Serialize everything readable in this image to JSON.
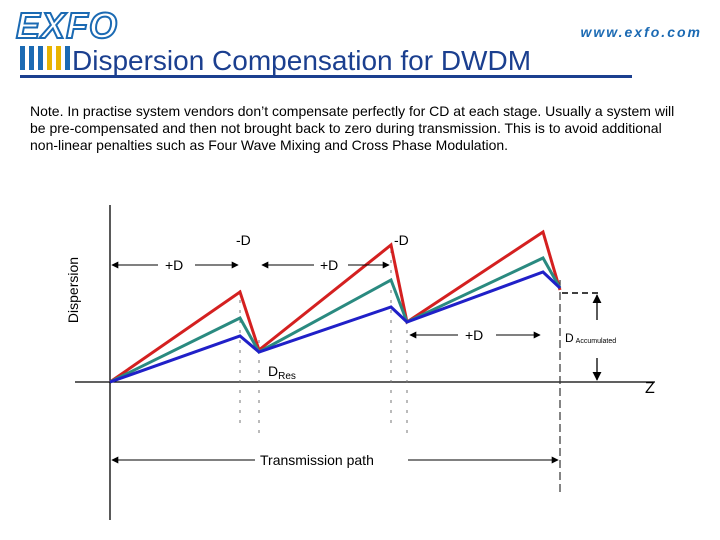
{
  "header": {
    "logo_text": "EXFO",
    "url": "www.exfo.com",
    "title": "Dispersion Compensation for DWDM",
    "accent_blue": "#1b6ab3",
    "accent_yellow": "#e8b400",
    "title_color": "#1b3f8f"
  },
  "note": "Note. In practise system vendors don’t compensate perfectly for CD at each stage. Usually a system will be pre-compensated and then not brought back to zero during transmission. This is to avoid additional non-linear penalties such as Four Wave Mixing and Cross Phase Modulation.",
  "diagram": {
    "y_axis_label": "Dispersion",
    "x_axis_label": "Z",
    "label_minus_d_1": "-D",
    "label_minus_d_2": "-D",
    "label_plus_d_1": "+D",
    "label_plus_d_2": "+D",
    "label_plus_d_3": "+D",
    "label_d_res_main": "D",
    "label_d_res_sub": "Res",
    "label_d_acc_main": "D",
    "label_d_acc_sub": "Accumulated",
    "label_transmission_path": "Transmission path",
    "series_colors": {
      "red": "#d42020",
      "teal": "#2a8a80",
      "blue": "#2020c8"
    }
  }
}
